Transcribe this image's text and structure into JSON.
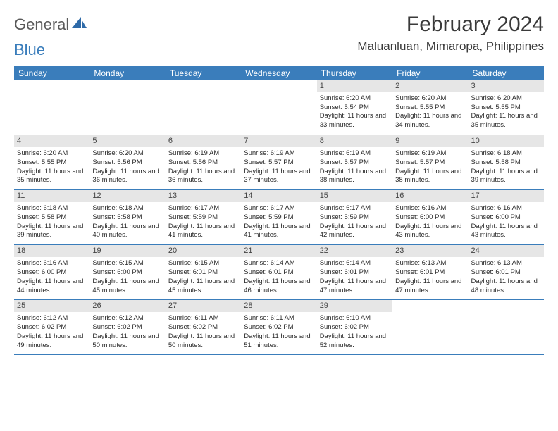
{
  "logo": {
    "word1": "General",
    "word2": "Blue"
  },
  "title": "February 2024",
  "location": "Maluanluan, Mimaropa, Philippines",
  "day_headers": [
    "Sunday",
    "Monday",
    "Tuesday",
    "Wednesday",
    "Thursday",
    "Friday",
    "Saturday"
  ],
  "colors": {
    "header_bg": "#3a7dbb",
    "header_text": "#ffffff",
    "daynum_bg": "#e6e6e6",
    "border": "#3a7dbb",
    "logo_gray": "#5a5a5a",
    "logo_blue": "#3a7dbb"
  },
  "weeks": [
    [
      {
        "empty": true
      },
      {
        "empty": true
      },
      {
        "empty": true
      },
      {
        "empty": true
      },
      {
        "day": "1",
        "sunrise": "Sunrise: 6:20 AM",
        "sunset": "Sunset: 5:54 PM",
        "daylight": "Daylight: 11 hours and 33 minutes."
      },
      {
        "day": "2",
        "sunrise": "Sunrise: 6:20 AM",
        "sunset": "Sunset: 5:55 PM",
        "daylight": "Daylight: 11 hours and 34 minutes."
      },
      {
        "day": "3",
        "sunrise": "Sunrise: 6:20 AM",
        "sunset": "Sunset: 5:55 PM",
        "daylight": "Daylight: 11 hours and 35 minutes."
      }
    ],
    [
      {
        "day": "4",
        "sunrise": "Sunrise: 6:20 AM",
        "sunset": "Sunset: 5:55 PM",
        "daylight": "Daylight: 11 hours and 35 minutes."
      },
      {
        "day": "5",
        "sunrise": "Sunrise: 6:20 AM",
        "sunset": "Sunset: 5:56 PM",
        "daylight": "Daylight: 11 hours and 36 minutes."
      },
      {
        "day": "6",
        "sunrise": "Sunrise: 6:19 AM",
        "sunset": "Sunset: 5:56 PM",
        "daylight": "Daylight: 11 hours and 36 minutes."
      },
      {
        "day": "7",
        "sunrise": "Sunrise: 6:19 AM",
        "sunset": "Sunset: 5:57 PM",
        "daylight": "Daylight: 11 hours and 37 minutes."
      },
      {
        "day": "8",
        "sunrise": "Sunrise: 6:19 AM",
        "sunset": "Sunset: 5:57 PM",
        "daylight": "Daylight: 11 hours and 38 minutes."
      },
      {
        "day": "9",
        "sunrise": "Sunrise: 6:19 AM",
        "sunset": "Sunset: 5:57 PM",
        "daylight": "Daylight: 11 hours and 38 minutes."
      },
      {
        "day": "10",
        "sunrise": "Sunrise: 6:18 AM",
        "sunset": "Sunset: 5:58 PM",
        "daylight": "Daylight: 11 hours and 39 minutes."
      }
    ],
    [
      {
        "day": "11",
        "sunrise": "Sunrise: 6:18 AM",
        "sunset": "Sunset: 5:58 PM",
        "daylight": "Daylight: 11 hours and 39 minutes."
      },
      {
        "day": "12",
        "sunrise": "Sunrise: 6:18 AM",
        "sunset": "Sunset: 5:58 PM",
        "daylight": "Daylight: 11 hours and 40 minutes."
      },
      {
        "day": "13",
        "sunrise": "Sunrise: 6:17 AM",
        "sunset": "Sunset: 5:59 PM",
        "daylight": "Daylight: 11 hours and 41 minutes."
      },
      {
        "day": "14",
        "sunrise": "Sunrise: 6:17 AM",
        "sunset": "Sunset: 5:59 PM",
        "daylight": "Daylight: 11 hours and 41 minutes."
      },
      {
        "day": "15",
        "sunrise": "Sunrise: 6:17 AM",
        "sunset": "Sunset: 5:59 PM",
        "daylight": "Daylight: 11 hours and 42 minutes."
      },
      {
        "day": "16",
        "sunrise": "Sunrise: 6:16 AM",
        "sunset": "Sunset: 6:00 PM",
        "daylight": "Daylight: 11 hours and 43 minutes."
      },
      {
        "day": "17",
        "sunrise": "Sunrise: 6:16 AM",
        "sunset": "Sunset: 6:00 PM",
        "daylight": "Daylight: 11 hours and 43 minutes."
      }
    ],
    [
      {
        "day": "18",
        "sunrise": "Sunrise: 6:16 AM",
        "sunset": "Sunset: 6:00 PM",
        "daylight": "Daylight: 11 hours and 44 minutes."
      },
      {
        "day": "19",
        "sunrise": "Sunrise: 6:15 AM",
        "sunset": "Sunset: 6:00 PM",
        "daylight": "Daylight: 11 hours and 45 minutes."
      },
      {
        "day": "20",
        "sunrise": "Sunrise: 6:15 AM",
        "sunset": "Sunset: 6:01 PM",
        "daylight": "Daylight: 11 hours and 45 minutes."
      },
      {
        "day": "21",
        "sunrise": "Sunrise: 6:14 AM",
        "sunset": "Sunset: 6:01 PM",
        "daylight": "Daylight: 11 hours and 46 minutes."
      },
      {
        "day": "22",
        "sunrise": "Sunrise: 6:14 AM",
        "sunset": "Sunset: 6:01 PM",
        "daylight": "Daylight: 11 hours and 47 minutes."
      },
      {
        "day": "23",
        "sunrise": "Sunrise: 6:13 AM",
        "sunset": "Sunset: 6:01 PM",
        "daylight": "Daylight: 11 hours and 47 minutes."
      },
      {
        "day": "24",
        "sunrise": "Sunrise: 6:13 AM",
        "sunset": "Sunset: 6:01 PM",
        "daylight": "Daylight: 11 hours and 48 minutes."
      }
    ],
    [
      {
        "day": "25",
        "sunrise": "Sunrise: 6:12 AM",
        "sunset": "Sunset: 6:02 PM",
        "daylight": "Daylight: 11 hours and 49 minutes."
      },
      {
        "day": "26",
        "sunrise": "Sunrise: 6:12 AM",
        "sunset": "Sunset: 6:02 PM",
        "daylight": "Daylight: 11 hours and 50 minutes."
      },
      {
        "day": "27",
        "sunrise": "Sunrise: 6:11 AM",
        "sunset": "Sunset: 6:02 PM",
        "daylight": "Daylight: 11 hours and 50 minutes."
      },
      {
        "day": "28",
        "sunrise": "Sunrise: 6:11 AM",
        "sunset": "Sunset: 6:02 PM",
        "daylight": "Daylight: 11 hours and 51 minutes."
      },
      {
        "day": "29",
        "sunrise": "Sunrise: 6:10 AM",
        "sunset": "Sunset: 6:02 PM",
        "daylight": "Daylight: 11 hours and 52 minutes."
      },
      {
        "empty": true
      },
      {
        "empty": true
      }
    ]
  ]
}
